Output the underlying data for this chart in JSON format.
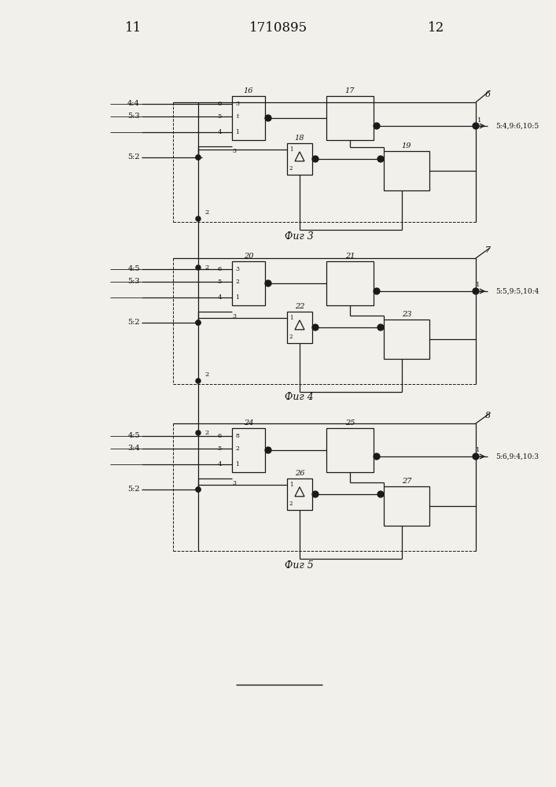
{
  "title": "1710895",
  "page_left": "11",
  "page_right": "12",
  "background": "#f2f0eb",
  "line_color": "#1a1a1a",
  "fig_labels": [
    "Фиг 3",
    "Фиг 4",
    "Фиг 5"
  ],
  "right_labels_fig3": "5:4,9:6,10:5",
  "right_labels_fig4": "5:5,9:5,10:4",
  "right_labels_fig5": "5:6,9:4,10:3",
  "block_nums_fig3": [
    "16",
    "17",
    "18",
    "19"
  ],
  "block_nums_fig4": [
    "20",
    "21",
    "22",
    "23"
  ],
  "block_nums_fig5": [
    "24",
    "25",
    "26",
    "27"
  ],
  "left_labels_fig3": [
    "4:4",
    "5:3",
    "5:2"
  ],
  "left_labels_fig4": [
    "4:5",
    "5:3",
    "5:2"
  ],
  "left_labels_fig5": [
    "4:5",
    "3:4",
    "5:2"
  ]
}
